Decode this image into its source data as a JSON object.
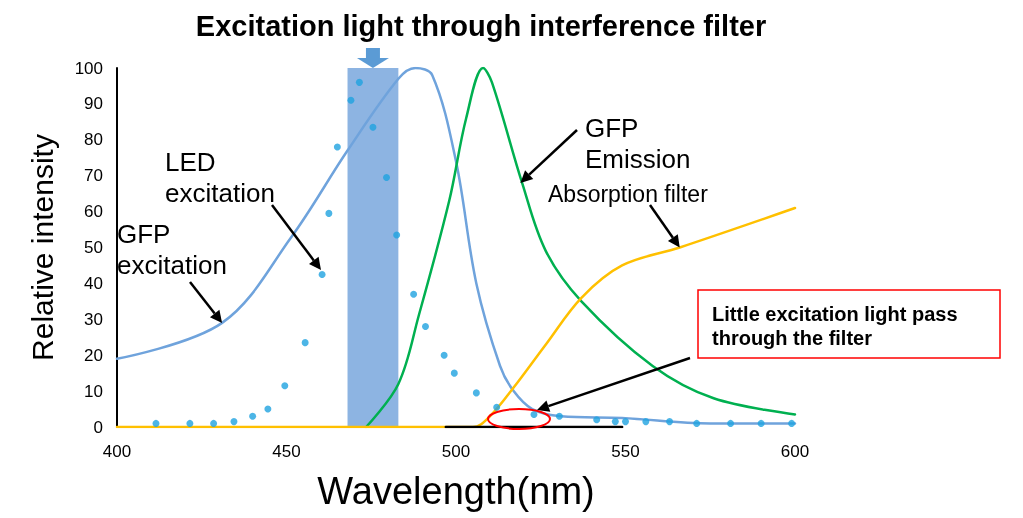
{
  "chart_data": {
    "type": "line",
    "title": "Excitation light through interference filter",
    "xlabel": "Wavelength(nm)",
    "ylabel": "Relative intensity",
    "xlim": [
      400,
      600
    ],
    "xticks": [
      400,
      450,
      500,
      550,
      600
    ],
    "ylim": [
      0,
      100
    ],
    "yticks": [
      0,
      10,
      20,
      30,
      40,
      50,
      60,
      70,
      80,
      90,
      100
    ],
    "grid": false,
    "marker": "none",
    "line_style": "solid",
    "series": [
      {
        "color": "#6fa3dc",
        "x": [
          400,
          431,
          451.5,
          468,
          483,
          488,
          493,
          500,
          506,
          513,
          517,
          522.5,
          531,
          549,
          575,
          600
        ],
        "values": [
          19,
          29,
          53,
          77,
          97,
          100,
          98,
          74,
          40,
          17,
          10,
          5,
          3,
          2.5,
          1,
          1
        ]
      },
      {
        "color": "#00b050",
        "x": [
          473.5,
          483,
          489,
          498,
          503,
          508,
          510.6,
          519.5,
          526.5,
          537,
          558,
          576,
          600
        ],
        "values": [
          0,
          12,
          31,
          63,
          86,
          100,
          96,
          68,
          49,
          35,
          17,
          8,
          3.5
        ]
      },
      {
        "color": "#ffc000",
        "x": [
          400,
          505,
          510,
          517,
          526.5,
          537,
          549,
          566,
          600
        ],
        "values": [
          0,
          0,
          3,
          11,
          23,
          36,
          45,
          50,
          61
        ]
      },
      {
        "color": "#000000",
        "x": [
          497,
          549
        ],
        "values": [
          0,
          0
        ]
      },
      {
        "type": "scatter",
        "color": "#1fa3e0",
        "marker": "circle",
        "x": [
          411.5,
          421.5,
          428.5,
          434.5,
          440,
          444.5,
          449.5,
          455.5,
          460.5,
          462.5,
          465,
          469,
          471.5,
          475.5,
          479.5,
          482.5,
          487.5,
          491,
          496.5,
          499.5,
          506,
          512,
          523,
          530.5,
          541.5,
          547,
          550,
          556,
          563,
          571,
          581,
          590,
          599
        ],
        "values": [
          1,
          1,
          1,
          1.5,
          3,
          5,
          11.5,
          23.5,
          42.5,
          59.5,
          78,
          91,
          96,
          83.5,
          69.5,
          53.5,
          37,
          28,
          20,
          15,
          9.5,
          5.5,
          3.5,
          3,
          2,
          1.5,
          1.5,
          1.5,
          1.5,
          1,
          1,
          1,
          1
        ]
      }
    ],
    "bands": [
      {
        "axis": "x",
        "from": 468,
        "to": 483,
        "color": "#8db4e2"
      }
    ],
    "annotations": [
      {
        "text": "GFP excitation",
        "x": 431,
        "y": 29
      },
      "LED excitation",
      {
        "text": "GFP Emission",
        "x": 519,
        "y": 68
      },
      {
        "text": "Absorption filter",
        "x": 566,
        "y": 50
      },
      "Little excitation light pass through the filter"
    ]
  }
}
